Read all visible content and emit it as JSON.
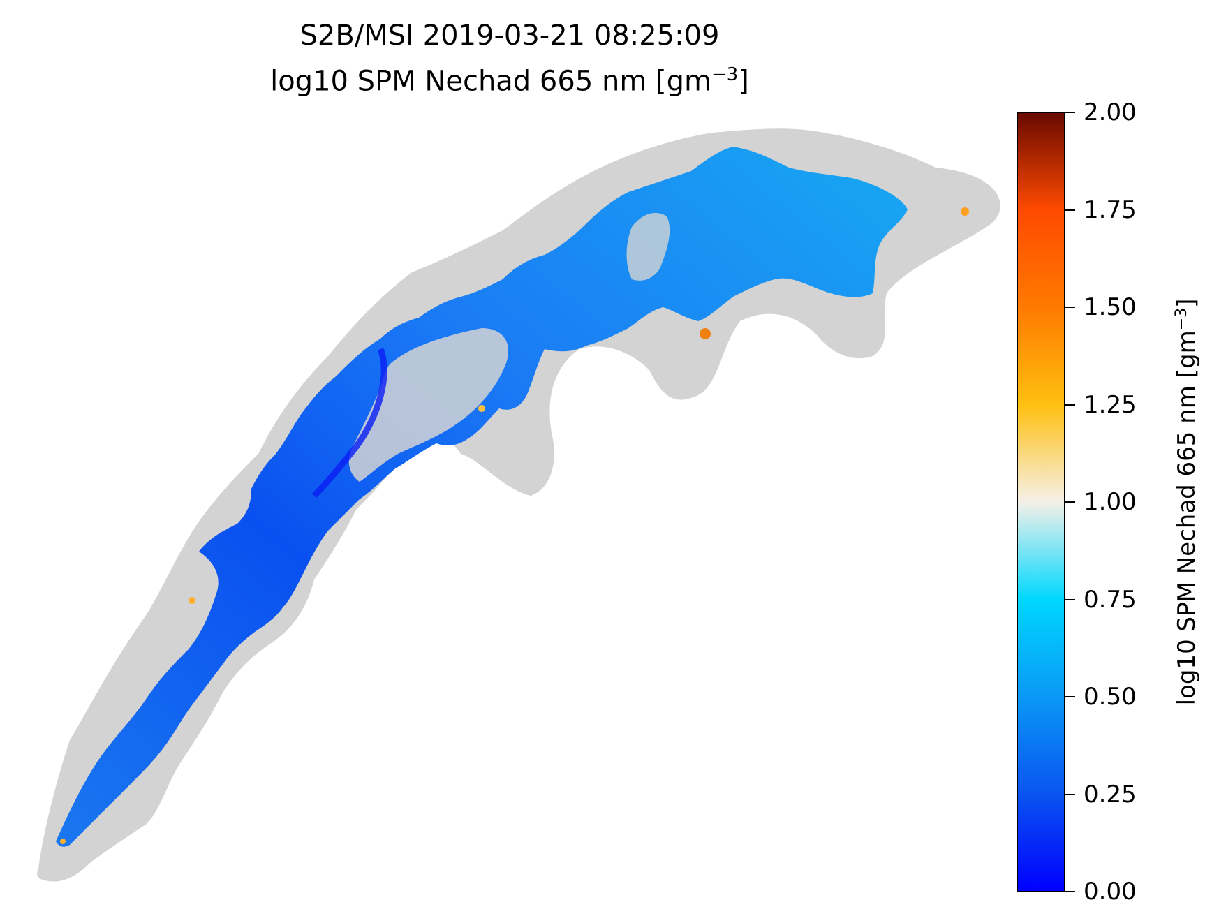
{
  "figure": {
    "title_line1": "S2B/MSI 2019-03-21 08:25:09",
    "title_line2_prefix": "log10 SPM Nechad 665 nm [gm",
    "title_line2_sup": "−3",
    "title_line2_suffix": "]"
  },
  "map": {
    "land_mask_color": "#d3d3d3",
    "background_color": "#ffffff"
  },
  "colorbar": {
    "label_prefix": "log10 SPM Nechad 665 nm [gm",
    "label_sup": "−3",
    "label_suffix": "]",
    "range": [
      0.0,
      2.0
    ],
    "ticks": [
      "0.00",
      "0.25",
      "0.50",
      "0.75",
      "1.00",
      "1.25",
      "1.50",
      "1.75",
      "2.00"
    ],
    "colormap_stops": [
      "#0000ff",
      "#0a55f0",
      "#0a98f5",
      "#00d8ff",
      "#f5f0e8",
      "#ffc010",
      "#ff7a00",
      "#ff4a00",
      "#6a0a00"
    ]
  }
}
